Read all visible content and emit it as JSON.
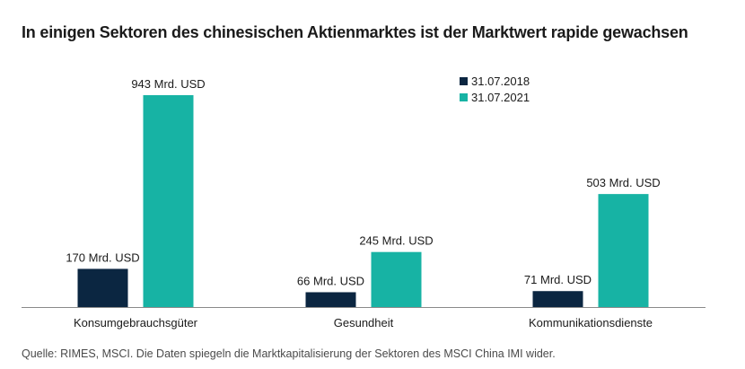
{
  "title": "In einigen Sektoren des chinesischen Aktienmarktes ist der Marktwert rapide gewachsen",
  "source": "Quelle: RIMES, MSCI. Die Daten spiegeln die Marktkapitalisierung der Sektoren des MSCI China IMI wider.",
  "colors": {
    "series_2018": "#0b2641",
    "series_2021": "#17b3a4",
    "axis": "#8a8a8a",
    "text": "#1a1a1a"
  },
  "chart_data": {
    "type": "bar",
    "title": "In einigen Sektoren des chinesischen Aktienmarktes ist der Marktwert rapide gewachsen",
    "xlabel": "",
    "ylabel": "",
    "grid": false,
    "legend_position": "top-right",
    "ylim": [
      0,
      943
    ],
    "categories": [
      "Konsumgebrauchsgüter",
      "Gesundheit",
      "Kommunikationsdienste"
    ],
    "series": [
      {
        "name": "31.07.2018",
        "color": "#0b2641",
        "values": [
          170,
          66,
          71
        ],
        "labels": [
          "170 Mrd. USD",
          "66 Mrd. USD",
          "71 Mrd. USD"
        ]
      },
      {
        "name": "31.07.2021",
        "color": "#17b3a4",
        "values": [
          943,
          245,
          503
        ],
        "labels": [
          "943 Mrd. USD",
          "245 Mrd. USD",
          "503 Mrd. USD"
        ]
      }
    ]
  }
}
